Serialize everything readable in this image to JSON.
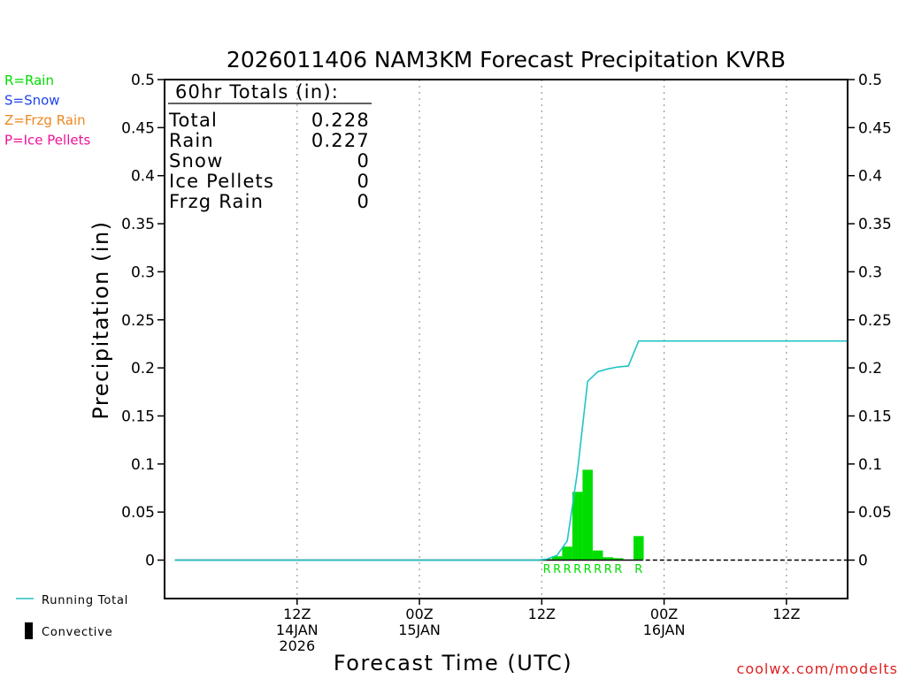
{
  "chart_data": {
    "type": "bar",
    "title": "2026011406 NAM3KM Forecast Precipitation KVRB",
    "xlabel": "Forecast Time (UTC)",
    "ylabel": "Precipitation (in)",
    "ylim": [
      -0.04,
      0.5
    ],
    "xlim_hours": [
      -7.0,
      60.0
    ],
    "y_ticks": [
      "0",
      "0.05",
      "0.1",
      "0.15",
      "0.2",
      "0.25",
      "0.3",
      "0.35",
      "0.4",
      "0.45",
      "0.5"
    ],
    "x_ticks": [
      {
        "hour": 6,
        "line1": "12Z",
        "line2": "14JAN",
        "line3": "2026"
      },
      {
        "hour": 18,
        "line1": "00Z",
        "line2": "15JAN",
        "line3": ""
      },
      {
        "hour": 30,
        "line1": "12Z",
        "line2": "",
        "line3": ""
      },
      {
        "hour": 42,
        "line1": "00Z",
        "line2": "16JAN",
        "line3": ""
      },
      {
        "hour": 54,
        "line1": "12Z",
        "line2": "",
        "line3": ""
      }
    ],
    "grid": "vertical dotted at tick marks",
    "series": [
      {
        "name": "Rain",
        "color": "#00dd00",
        "bars": [
          {
            "hour": 30.5,
            "value": 0.001,
            "label": "R"
          },
          {
            "hour": 31.5,
            "value": 0.004,
            "label": "R"
          },
          {
            "hour": 32.5,
            "value": 0.014,
            "label": "R"
          },
          {
            "hour": 33.5,
            "value": 0.071,
            "label": "R"
          },
          {
            "hour": 34.5,
            "value": 0.094,
            "label": "R"
          },
          {
            "hour": 35.5,
            "value": 0.01,
            "label": "R"
          },
          {
            "hour": 36.5,
            "value": 0.003,
            "label": "R"
          },
          {
            "hour": 37.5,
            "value": 0.002,
            "label": "R"
          },
          {
            "hour": 39.5,
            "value": 0.025,
            "label": "R"
          }
        ]
      },
      {
        "name": "Running Total",
        "color": "#22c4c4",
        "points": [
          [
            -6,
            0
          ],
          [
            29.5,
            0
          ],
          [
            30.5,
            0.001
          ],
          [
            31.5,
            0.005
          ],
          [
            32.5,
            0.02
          ],
          [
            33.5,
            0.092
          ],
          [
            34.5,
            0.186
          ],
          [
            35.5,
            0.196
          ],
          [
            36.5,
            0.199
          ],
          [
            37.5,
            0.201
          ],
          [
            38.5,
            0.202
          ],
          [
            39.5,
            0.228
          ],
          [
            60,
            0.228
          ]
        ]
      }
    ],
    "zero_dash_from_hour": 39.5,
    "totals_box": {
      "heading": "60hr Totals (in):",
      "rows": [
        {
          "label": "Total",
          "value": "0.228"
        },
        {
          "label": "Rain",
          "value": "0.227"
        },
        {
          "label": "Snow",
          "value": "0"
        },
        {
          "label": "Ice Pellets",
          "value": "0"
        },
        {
          "label": "Frzg Rain",
          "value": "0"
        }
      ]
    },
    "type_legend": [
      {
        "text": "R=Rain",
        "color": "#00dd00"
      },
      {
        "text": "S=Snow",
        "color": "#2244ee"
      },
      {
        "text": "Z=Frzg Rain",
        "color": "#ee8822"
      },
      {
        "text": "P=Ice Pellets",
        "color": "#ee1199"
      }
    ],
    "bottom_legend": [
      {
        "text": "Running Total",
        "kind": "line",
        "color": "#22c4c4"
      },
      {
        "text": "Convective",
        "kind": "box",
        "color": "#000000"
      }
    ],
    "credit": "coolwx.com/modelts",
    "credit_color": "#dd2222"
  }
}
